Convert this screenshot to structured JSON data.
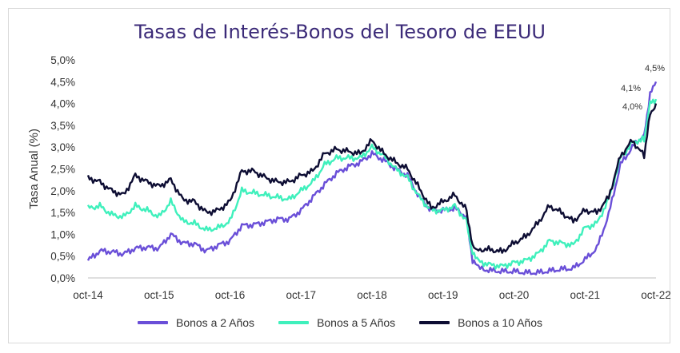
{
  "chart_data": {
    "type": "line",
    "title": "Tasas de Interés-Bonos del Tesoro de EEUU",
    "ylabel": "Tasa Anual (%)",
    "xlabel": "",
    "ylim": [
      0,
      5
    ],
    "y_ticks": [
      "0,0%",
      "0,5%",
      "1,0%",
      "1,5%",
      "2,0%",
      "2,5%",
      "3,0%",
      "3,5%",
      "4,0%",
      "4,5%",
      "5,0%"
    ],
    "x_ticks": [
      "oct-14",
      "oct-15",
      "oct-16",
      "oct-17",
      "oct-18",
      "oct-19",
      "oct-20",
      "oct-21",
      "oct-22"
    ],
    "grid": false,
    "legend_position": "bottom",
    "x": [
      "oct-14",
      "dic-14",
      "feb-15",
      "abr-15",
      "jun-15",
      "ago-15",
      "oct-15",
      "dic-15",
      "feb-16",
      "abr-16",
      "jun-16",
      "ago-16",
      "oct-16",
      "dic-16",
      "feb-17",
      "abr-17",
      "jun-17",
      "ago-17",
      "oct-17",
      "dic-17",
      "feb-18",
      "abr-18",
      "jun-18",
      "ago-18",
      "oct-18",
      "dic-18",
      "feb-19",
      "abr-19",
      "jun-19",
      "ago-19",
      "oct-19",
      "dic-19",
      "feb-20",
      "mar-20",
      "abr-20",
      "jun-20",
      "ago-20",
      "oct-20",
      "dic-20",
      "feb-21",
      "abr-21",
      "jun-21",
      "ago-21",
      "oct-21",
      "dic-21",
      "feb-22",
      "abr-22",
      "jun-22",
      "ago-22",
      "sep-22",
      "oct-22"
    ],
    "series": [
      {
        "name": "Bonos a 2 Años",
        "color": "#6a4fd8",
        "values": [
          0.4,
          0.62,
          0.6,
          0.55,
          0.68,
          0.7,
          0.68,
          1.0,
          0.8,
          0.78,
          0.62,
          0.75,
          0.85,
          1.2,
          1.22,
          1.28,
          1.35,
          1.35,
          1.55,
          1.85,
          2.15,
          2.4,
          2.55,
          2.65,
          2.85,
          2.7,
          2.5,
          2.35,
          1.85,
          1.55,
          1.55,
          1.6,
          1.4,
          0.4,
          0.22,
          0.17,
          0.15,
          0.15,
          0.12,
          0.12,
          0.16,
          0.2,
          0.22,
          0.42,
          0.68,
          1.45,
          2.6,
          3.0,
          3.3,
          4.2,
          4.5
        ]
      },
      {
        "name": "Bonos a 5 Años",
        "color": "#3ff0bc",
        "values": [
          1.6,
          1.65,
          1.45,
          1.4,
          1.65,
          1.55,
          1.4,
          1.75,
          1.3,
          1.25,
          1.1,
          1.15,
          1.3,
          2.0,
          1.95,
          1.9,
          1.85,
          1.8,
          2.0,
          2.2,
          2.6,
          2.75,
          2.75,
          2.75,
          3.0,
          2.8,
          2.5,
          2.3,
          1.85,
          1.55,
          1.55,
          1.65,
          1.3,
          0.55,
          0.38,
          0.3,
          0.27,
          0.35,
          0.4,
          0.55,
          0.85,
          0.8,
          0.75,
          1.15,
          1.25,
          1.8,
          2.75,
          3.1,
          3.2,
          4.0,
          4.1
        ]
      },
      {
        "name": "Bonos a 10 Años",
        "color": "#0d0d33",
        "values": [
          2.3,
          2.2,
          2.0,
          1.9,
          2.35,
          2.2,
          2.1,
          2.25,
          1.8,
          1.75,
          1.5,
          1.55,
          1.75,
          2.45,
          2.45,
          2.3,
          2.2,
          2.2,
          2.35,
          2.45,
          2.85,
          2.95,
          2.9,
          2.85,
          3.15,
          2.85,
          2.65,
          2.5,
          2.05,
          1.6,
          1.75,
          1.9,
          1.55,
          0.7,
          0.65,
          0.65,
          0.6,
          0.8,
          0.95,
          1.25,
          1.65,
          1.5,
          1.3,
          1.55,
          1.5,
          1.85,
          2.8,
          3.15,
          2.8,
          3.75,
          4.0
        ]
      }
    ],
    "data_labels": [
      "4,5%",
      "4,1%",
      "4,0%"
    ]
  }
}
